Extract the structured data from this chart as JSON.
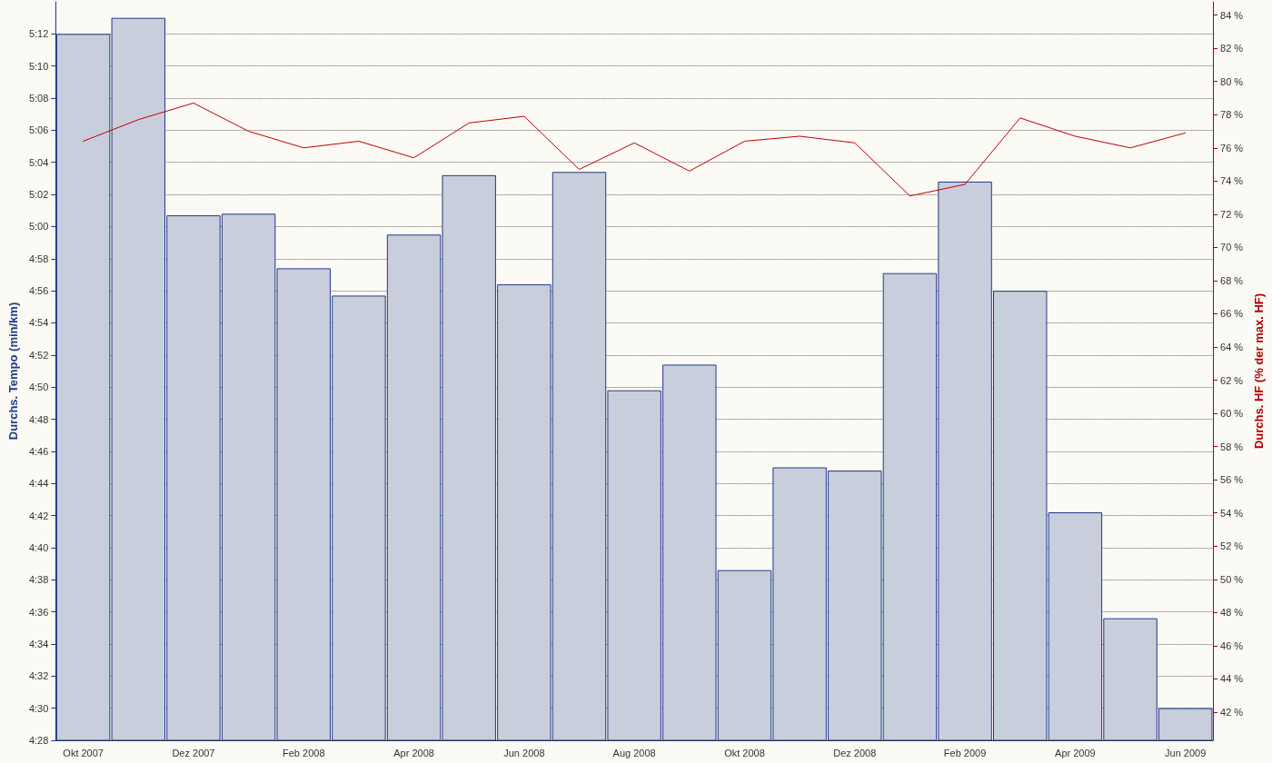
{
  "chart_data": {
    "type": "bar",
    "categories": [
      "Okt 2007",
      null,
      "Dez 2007",
      null,
      "Feb 2008",
      null,
      "Apr 2008",
      null,
      "Jun 2008",
      null,
      "Aug 2008",
      null,
      "Okt 2008",
      null,
      "Dez 2008",
      null,
      "Feb 2009",
      null,
      "Apr 2009",
      null,
      "Jun 2009"
    ],
    "ylabel": "Durchs. Tempo (min/km)",
    "y2label": "Durchs. HF (% der max. HF)",
    "series": [
      {
        "color": "#c8cedb",
        "values": [
          312,
          313,
          300.7,
          300.8,
          297.4,
          295.7,
          299.5,
          303.2,
          296.4,
          303.4,
          289.8,
          291.4,
          278.6,
          285.0,
          284.8,
          297.1,
          302.8,
          296.0,
          282.2,
          275.6,
          270.0
        ]
      },
      {
        "type": "line",
        "axis": "y2",
        "color": "#c00000",
        "values": [
          76.4,
          77.7,
          78.7,
          77.0,
          76.0,
          76.4,
          75.4,
          77.5,
          77.9,
          74.7,
          76.3,
          74.6,
          76.4,
          76.7,
          76.3,
          73.1,
          73.8,
          77.8,
          76.7,
          76.0,
          76.9
        ]
      }
    ],
    "ylim": [
      268,
      314
    ],
    "yticks": [
      {
        "value": 268,
        "label": "4:28"
      },
      {
        "value": 270,
        "label": "4:30"
      },
      {
        "value": 272,
        "label": "4:32"
      },
      {
        "value": 274,
        "label": "4:34"
      },
      {
        "value": 276,
        "label": "4:36"
      },
      {
        "value": 278,
        "label": "4:38"
      },
      {
        "value": 280,
        "label": "4:40"
      },
      {
        "value": 282,
        "label": "4:42"
      },
      {
        "value": 284,
        "label": "4:44"
      },
      {
        "value": 286,
        "label": "4:46"
      },
      {
        "value": 288,
        "label": "4:48"
      },
      {
        "value": 290,
        "label": "4:50"
      },
      {
        "value": 292,
        "label": "4:52"
      },
      {
        "value": 294,
        "label": "4:54"
      },
      {
        "value": 296,
        "label": "4:56"
      },
      {
        "value": 298,
        "label": "4:58"
      },
      {
        "value": 300,
        "label": "5:00"
      },
      {
        "value": 302,
        "label": "5:02"
      },
      {
        "value": 304,
        "label": "5:04"
      },
      {
        "value": 306,
        "label": "5:06"
      },
      {
        "value": 308,
        "label": "5:08"
      },
      {
        "value": 310,
        "label": "5:10"
      },
      {
        "value": 312,
        "label": "5:12"
      }
    ],
    "y2lim": [
      40.3,
      84.8
    ],
    "y2ticks": [
      {
        "value": 42,
        "label": "42 %"
      },
      {
        "value": 44,
        "label": "44 %"
      },
      {
        "value": 46,
        "label": "46 %"
      },
      {
        "value": 48,
        "label": "48 %"
      },
      {
        "value": 50,
        "label": "50 %"
      },
      {
        "value": 52,
        "label": "52 %"
      },
      {
        "value": 54,
        "label": "54 %"
      },
      {
        "value": 56,
        "label": "56 %"
      },
      {
        "value": 58,
        "label": "58 %"
      },
      {
        "value": 60,
        "label": "60 %"
      },
      {
        "value": 62,
        "label": "62 %"
      },
      {
        "value": 64,
        "label": "64 %"
      },
      {
        "value": 66,
        "label": "66 %"
      },
      {
        "value": 68,
        "label": "68 %"
      },
      {
        "value": 70,
        "label": "70 %"
      },
      {
        "value": 72,
        "label": "72 %"
      },
      {
        "value": 74,
        "label": "74 %"
      },
      {
        "value": 76,
        "label": "76 %"
      },
      {
        "value": 78,
        "label": "78 %"
      },
      {
        "value": 80,
        "label": "80 %"
      },
      {
        "value": 82,
        "label": "82 %"
      },
      {
        "value": 84,
        "label": "84 %"
      }
    ],
    "grid": "y",
    "marker": "none",
    "line_style": "solid"
  }
}
